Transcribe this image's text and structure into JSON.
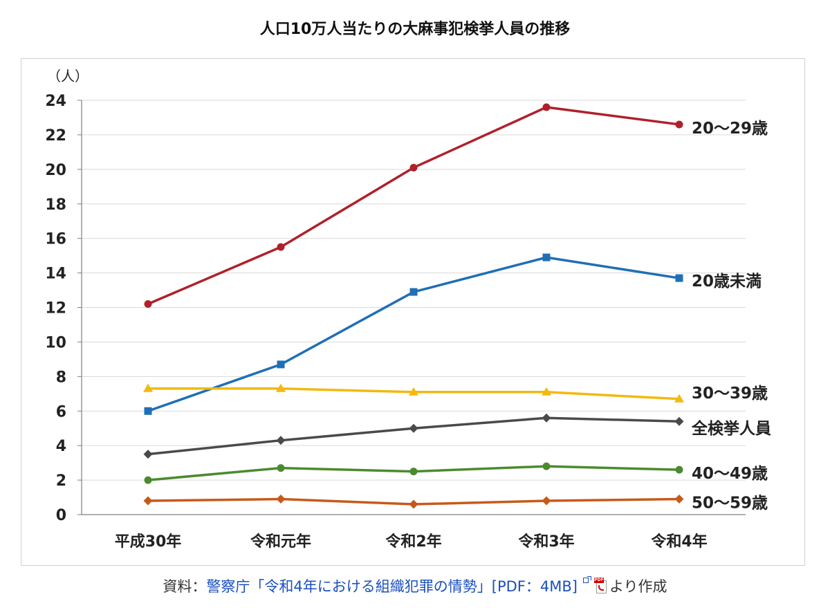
{
  "chart_data": {
    "type": "line",
    "title": "人口10万人当たりの大麻事犯検挙人員の推移",
    "ylabel": "（人）",
    "xlabel": "",
    "categories": [
      "平成30年",
      "令和元年",
      "令和2年",
      "令和3年",
      "令和4年"
    ],
    "ylim": [
      0,
      24
    ],
    "yticks": [
      0,
      2,
      4,
      6,
      8,
      10,
      12,
      14,
      16,
      18,
      20,
      22,
      24
    ],
    "grid": true,
    "series": [
      {
        "name": "20～29歳",
        "values": [
          12.2,
          15.5,
          20.1,
          23.6,
          22.6
        ],
        "color": "#b0202a",
        "marker": "circle"
      },
      {
        "name": "20歳未満",
        "values": [
          6.0,
          8.7,
          12.9,
          14.9,
          13.7
        ],
        "color": "#1f6fb5",
        "marker": "square"
      },
      {
        "name": "30～39歳",
        "values": [
          7.3,
          7.3,
          7.1,
          7.1,
          6.7
        ],
        "color": "#f2b90f",
        "marker": "triangle"
      },
      {
        "name": "全検挙人員",
        "values": [
          3.5,
          4.3,
          5.0,
          5.6,
          5.4
        ],
        "color": "#4a4a4a",
        "marker": "diamond"
      },
      {
        "name": "40～49歳",
        "values": [
          2.0,
          2.7,
          2.5,
          2.8,
          2.6
        ],
        "color": "#4c8a2e",
        "marker": "circle"
      },
      {
        "name": "50～59歳",
        "values": [
          0.8,
          0.9,
          0.6,
          0.8,
          0.9
        ],
        "color": "#c65a1a",
        "marker": "diamond"
      }
    ]
  },
  "source": {
    "prefix": "資料：",
    "link_text": "警察庁「令和4年における組織犯罪の情勢」[PDF：4MB]",
    "pdf_tag": "PDF",
    "suffix": "より作成"
  }
}
